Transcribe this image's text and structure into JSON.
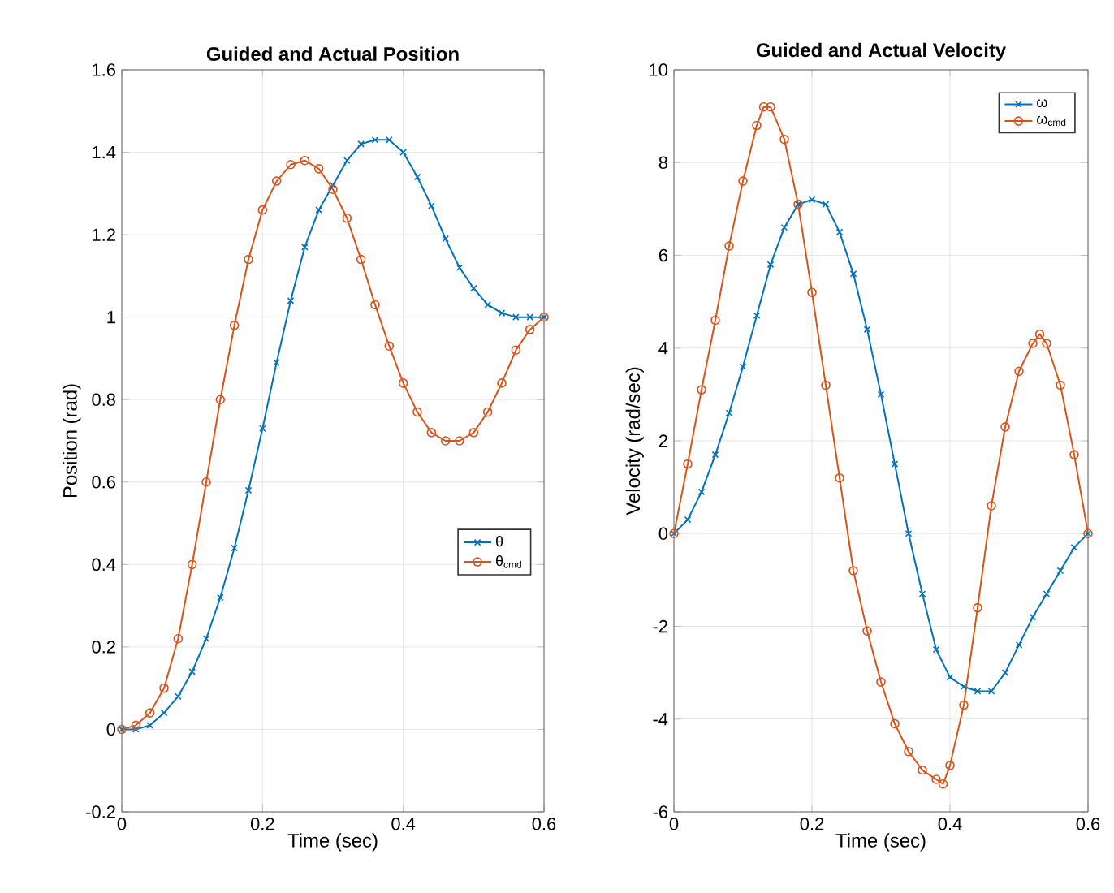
{
  "chart_data": [
    {
      "type": "line",
      "title": "Guided and Actual Position",
      "xlabel": "Time (sec)",
      "ylabel": "Position (rad)",
      "xlim": [
        0,
        0.6
      ],
      "ylim": [
        -0.2,
        1.6
      ],
      "xticks": [
        0,
        0.2,
        0.4,
        0.6
      ],
      "yticks": [
        -0.2,
        0,
        0.2,
        0.4,
        0.6,
        0.8,
        1,
        1.2,
        1.4,
        1.6
      ],
      "grid": true,
      "legend": "right",
      "series": [
        {
          "name": "θ",
          "color": "#0072bd",
          "marker": "cross",
          "x": [
            0,
            0.02,
            0.04,
            0.06,
            0.08,
            0.1,
            0.12,
            0.14,
            0.16,
            0.18,
            0.2,
            0.22,
            0.24,
            0.26,
            0.28,
            0.3,
            0.32,
            0.34,
            0.36,
            0.38,
            0.4,
            0.42,
            0.44,
            0.46,
            0.48,
            0.5,
            0.52,
            0.54,
            0.56,
            0.58,
            0.6
          ],
          "values": [
            0,
            0,
            0.01,
            0.04,
            0.08,
            0.14,
            0.22,
            0.32,
            0.44,
            0.58,
            0.73,
            0.89,
            1.04,
            1.17,
            1.26,
            1.32,
            1.38,
            1.42,
            1.43,
            1.43,
            1.4,
            1.34,
            1.27,
            1.19,
            1.12,
            1.07,
            1.03,
            1.01,
            1,
            1,
            1
          ]
        },
        {
          "name": "θ$_{cmd}$",
          "color": "#d95319",
          "marker": "circle",
          "x": [
            0,
            0.02,
            0.04,
            0.06,
            0.08,
            0.1,
            0.12,
            0.14,
            0.16,
            0.18,
            0.2,
            0.22,
            0.24,
            0.26,
            0.28,
            0.3,
            0.32,
            0.34,
            0.36,
            0.38,
            0.4,
            0.42,
            0.44,
            0.46,
            0.48,
            0.5,
            0.52,
            0.54,
            0.56,
            0.58,
            0.6
          ],
          "values": [
            0,
            0.01,
            0.04,
            0.1,
            0.22,
            0.4,
            0.6,
            0.8,
            0.98,
            1.14,
            1.26,
            1.33,
            1.37,
            1.38,
            1.36,
            1.31,
            1.24,
            1.14,
            1.03,
            0.93,
            0.84,
            0.77,
            0.72,
            0.7,
            0.7,
            0.72,
            0.77,
            0.84,
            0.92,
            0.97,
            1
          ]
        }
      ]
    },
    {
      "type": "line",
      "title": "Guided and Actual Velocity",
      "xlabel": "Time (sec)",
      "ylabel": "Velocity (rad/sec)",
      "xlim": [
        0,
        0.6
      ],
      "ylim": [
        -6,
        10
      ],
      "xticks": [
        0,
        0.2,
        0.4,
        0.6
      ],
      "yticks": [
        -6,
        -4,
        -2,
        0,
        2,
        4,
        6,
        8,
        10
      ],
      "grid": true,
      "legend": "top right",
      "series": [
        {
          "name": "ω",
          "color": "#0072bd",
          "marker": "cross",
          "x": [
            0,
            0.02,
            0.04,
            0.06,
            0.08,
            0.1,
            0.12,
            0.14,
            0.16,
            0.18,
            0.2,
            0.22,
            0.24,
            0.26,
            0.28,
            0.3,
            0.32,
            0.34,
            0.36,
            0.38,
            0.4,
            0.42,
            0.44,
            0.46,
            0.48,
            0.5,
            0.52,
            0.54,
            0.56,
            0.58,
            0.6
          ],
          "values": [
            0,
            0.3,
            0.9,
            1.7,
            2.6,
            3.6,
            4.7,
            5.8,
            6.6,
            7.1,
            7.2,
            7.1,
            6.5,
            5.6,
            4.4,
            3,
            1.5,
            0,
            -1.3,
            -2.5,
            -3.1,
            -3.3,
            -3.4,
            -3.4,
            -3,
            -2.4,
            -1.8,
            -1.3,
            -0.8,
            -0.3,
            0
          ]
        },
        {
          "name": "ω$_{cmd}$",
          "color": "#d95319",
          "marker": "circle",
          "x": [
            0,
            0.02,
            0.04,
            0.06,
            0.08,
            0.1,
            0.12,
            0.13,
            0.14,
            0.16,
            0.18,
            0.2,
            0.22,
            0.24,
            0.26,
            0.28,
            0.3,
            0.32,
            0.34,
            0.36,
            0.38,
            0.39,
            0.4,
            0.42,
            0.44,
            0.46,
            0.48,
            0.5,
            0.52,
            0.53,
            0.54,
            0.56,
            0.58,
            0.6
          ],
          "values": [
            0,
            1.5,
            3.1,
            4.6,
            6.2,
            7.6,
            8.8,
            9.2,
            9.2,
            8.5,
            7.1,
            5.2,
            3.2,
            1.2,
            -0.8,
            -2.1,
            -3.2,
            -4.1,
            -4.7,
            -5.1,
            -5.3,
            -5.4,
            -5,
            -3.7,
            -1.6,
            0.6,
            2.3,
            3.5,
            4.1,
            4.3,
            4.1,
            3.2,
            1.7,
            0
          ]
        }
      ]
    }
  ]
}
